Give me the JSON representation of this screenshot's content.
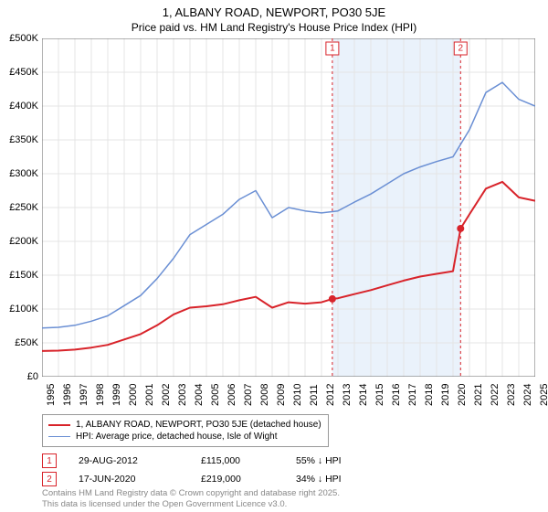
{
  "title": "1, ALBANY ROAD, NEWPORT, PO30 5JE",
  "subtitle": "Price paid vs. HM Land Registry's House Price Index (HPI)",
  "chart": {
    "type": "line",
    "x_years": [
      1995,
      1996,
      1997,
      1998,
      1999,
      2000,
      2001,
      2002,
      2003,
      2004,
      2005,
      2006,
      2007,
      2008,
      2009,
      2010,
      2011,
      2012,
      2013,
      2014,
      2015,
      2016,
      2017,
      2018,
      2019,
      2020,
      2021,
      2022,
      2023,
      2024,
      2025
    ],
    "ylim": [
      0,
      500000
    ],
    "ytick_step": 50000,
    "ytick_labels": [
      "£0",
      "£50K",
      "£100K",
      "£150K",
      "£200K",
      "£250K",
      "£300K",
      "£350K",
      "£400K",
      "£450K",
      "£500K"
    ],
    "background_color": "#ffffff",
    "grid_color": "#e4e4e4",
    "axis_color": "#666666",
    "shaded_band": {
      "from_year": 2012.66,
      "to_year": 2020.46,
      "fill": "#eaf2fb"
    },
    "event_lines": [
      {
        "year": 2012.66,
        "color": "#d8232a",
        "dash": "3,3",
        "label": "1"
      },
      {
        "year": 2020.46,
        "color": "#d8232a",
        "dash": "3,3",
        "label": "2"
      }
    ],
    "series": [
      {
        "name": "HPI",
        "color": "#6a8fd4",
        "width": 1.5,
        "points": [
          [
            1995,
            72000
          ],
          [
            1996,
            73000
          ],
          [
            1997,
            76000
          ],
          [
            1998,
            82000
          ],
          [
            1999,
            90000
          ],
          [
            2000,
            105000
          ],
          [
            2001,
            120000
          ],
          [
            2002,
            145000
          ],
          [
            2003,
            175000
          ],
          [
            2004,
            210000
          ],
          [
            2005,
            225000
          ],
          [
            2006,
            240000
          ],
          [
            2007,
            262000
          ],
          [
            2008,
            275000
          ],
          [
            2009,
            235000
          ],
          [
            2010,
            250000
          ],
          [
            2011,
            245000
          ],
          [
            2012,
            242000
          ],
          [
            2013,
            245000
          ],
          [
            2014,
            258000
          ],
          [
            2015,
            270000
          ],
          [
            2016,
            285000
          ],
          [
            2017,
            300000
          ],
          [
            2018,
            310000
          ],
          [
            2019,
            318000
          ],
          [
            2020,
            325000
          ],
          [
            2021,
            365000
          ],
          [
            2022,
            420000
          ],
          [
            2023,
            435000
          ],
          [
            2024,
            410000
          ],
          [
            2025,
            400000
          ]
        ]
      },
      {
        "name": "PricePaid",
        "color": "#d8232a",
        "width": 2,
        "points": [
          [
            1995,
            38000
          ],
          [
            1996,
            38500
          ],
          [
            1997,
            40000
          ],
          [
            1998,
            43000
          ],
          [
            1999,
            47000
          ],
          [
            2000,
            55000
          ],
          [
            2001,
            63000
          ],
          [
            2002,
            76000
          ],
          [
            2003,
            92000
          ],
          [
            2004,
            102000
          ],
          [
            2005,
            104000
          ],
          [
            2006,
            107000
          ],
          [
            2007,
            113000
          ],
          [
            2008,
            118000
          ],
          [
            2009,
            102000
          ],
          [
            2010,
            110000
          ],
          [
            2011,
            108000
          ],
          [
            2012,
            110000
          ],
          [
            2012.66,
            115000
          ],
          [
            2013,
            116000
          ],
          [
            2014,
            122000
          ],
          [
            2015,
            128000
          ],
          [
            2016,
            135000
          ],
          [
            2017,
            142000
          ],
          [
            2018,
            148000
          ],
          [
            2019,
            152000
          ],
          [
            2020,
            156000
          ],
          [
            2020.46,
            219000
          ],
          [
            2021,
            240000
          ],
          [
            2022,
            278000
          ],
          [
            2023,
            288000
          ],
          [
            2024,
            265000
          ],
          [
            2025,
            260000
          ]
        ],
        "markers": [
          {
            "x": 2012.66,
            "y": 115000,
            "r": 4
          },
          {
            "x": 2020.46,
            "y": 219000,
            "r": 4
          }
        ]
      }
    ]
  },
  "legend": {
    "items": [
      {
        "color": "#d8232a",
        "width": 2,
        "label": "1, ALBANY ROAD, NEWPORT, PO30 5JE (detached house)"
      },
      {
        "color": "#6a8fd4",
        "width": 1.5,
        "label": "HPI: Average price, detached house, Isle of Wight"
      }
    ]
  },
  "events": [
    {
      "marker": "1",
      "date": "29-AUG-2012",
      "price": "£115,000",
      "diff": "55% ↓ HPI"
    },
    {
      "marker": "2",
      "date": "17-JUN-2020",
      "price": "£219,000",
      "diff": "34% ↓ HPI"
    }
  ],
  "footer": {
    "line1": "Contains HM Land Registry data © Crown copyright and database right 2025.",
    "line2": "This data is licensed under the Open Government Licence v3.0."
  },
  "marker_border_color": "#d8232a"
}
